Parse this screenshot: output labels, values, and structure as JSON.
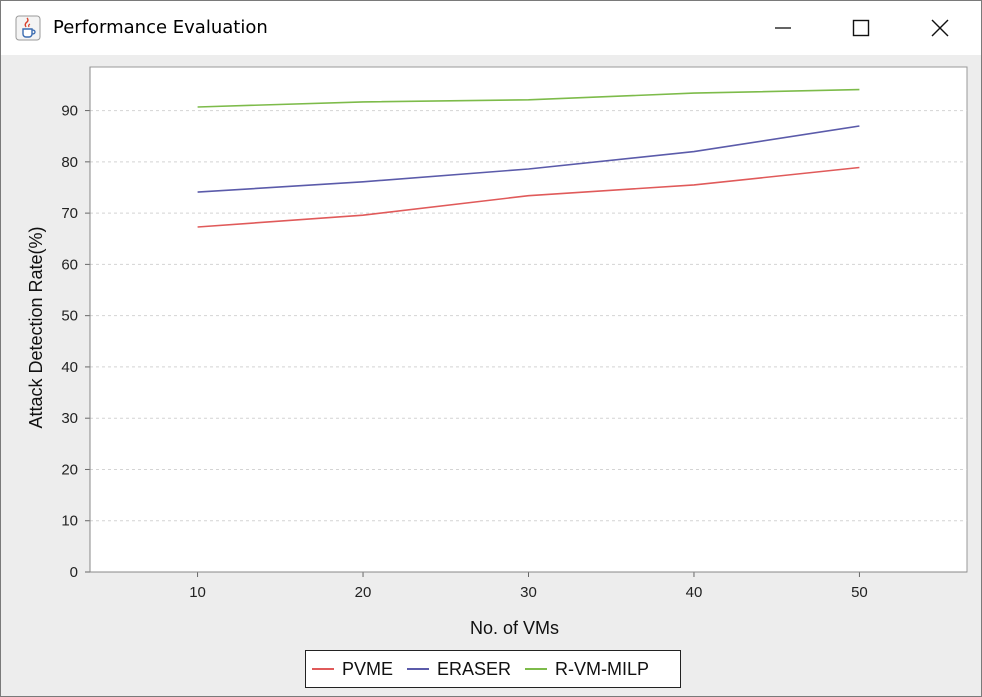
{
  "window": {
    "title": "Performance Evaluation",
    "icon": "java-cup-icon",
    "controls": [
      "minimize-icon",
      "maximize-icon",
      "close-icon"
    ]
  },
  "colors": {
    "PVME": "#e05a5a",
    "ERASER": "#5b5baa",
    "R-VM-MILP": "#7dbb4a",
    "grid": "#d4d4d4",
    "plot_bg": "#ffffff"
  },
  "chart_data": {
    "type": "line",
    "title": "",
    "xlabel": "No. of VMs",
    "ylabel": "Attack Detection Rate(%)",
    "x": [
      10,
      20,
      30,
      40,
      50
    ],
    "xticks": [
      10,
      20,
      30,
      40,
      50
    ],
    "yticks": [
      0,
      10,
      20,
      30,
      40,
      50,
      60,
      70,
      80,
      90
    ],
    "xlim": [
      3.5,
      56.5
    ],
    "ylim": [
      0,
      98.5
    ],
    "grid": "horizontal dashed",
    "legend": "bottom",
    "series": [
      {
        "name": "PVME",
        "values": [
          67.3,
          69.6,
          73.4,
          75.5,
          78.9
        ]
      },
      {
        "name": "ERASER",
        "values": [
          74.1,
          76.1,
          78.6,
          82.0,
          87.0
        ]
      },
      {
        "name": "R-VM-MILP",
        "values": [
          90.7,
          91.7,
          92.1,
          93.4,
          94.1
        ]
      }
    ]
  }
}
